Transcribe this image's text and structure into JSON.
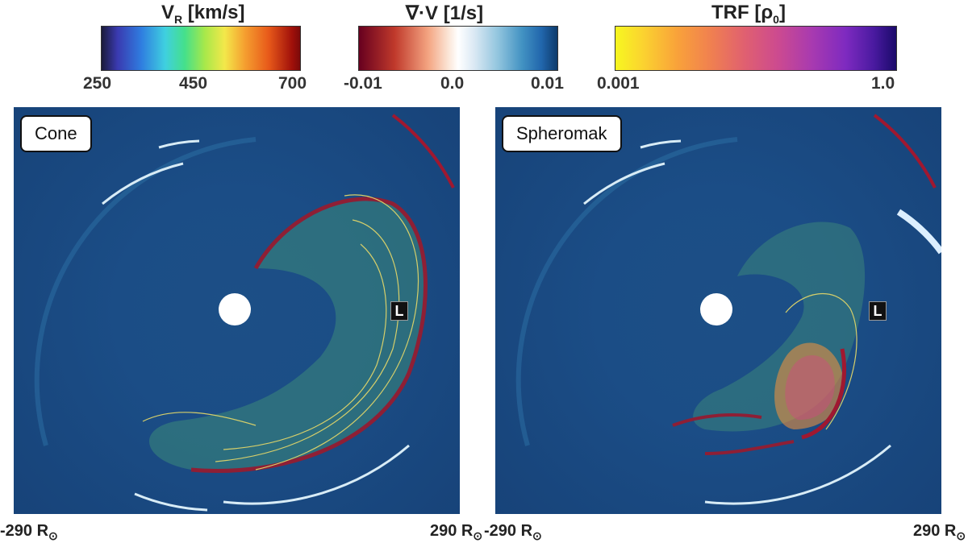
{
  "colorbars": {
    "vr": {
      "title": "V",
      "title_sub": "R",
      "title_unit": " [km/s]",
      "ticks": [
        "250",
        "450",
        "700"
      ]
    },
    "div": {
      "title": "∇·V [1/s]",
      "ticks": [
        "-0.01",
        "0.0",
        "0.01"
      ]
    },
    "trf": {
      "title": "TRF [ρ",
      "title_sub": "0",
      "title_end": "]",
      "ticks": [
        "0.001",
        "1.0"
      ]
    }
  },
  "panels": {
    "cone": {
      "label": "Cone",
      "marker": "L"
    },
    "spheromak": {
      "label": "Spheromak",
      "marker": "L"
    }
  },
  "axis": {
    "left_min": "-290 R",
    "left_max": "290 R",
    "right_min": "-290 R",
    "right_max": "290 R",
    "sun_symbol": "⊙"
  }
}
